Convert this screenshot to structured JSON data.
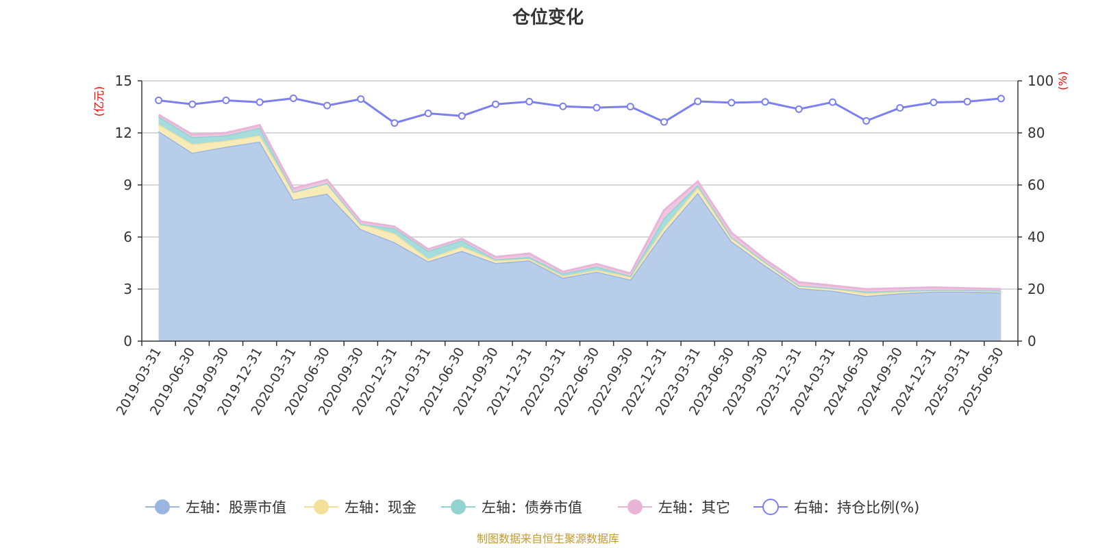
{
  "chart_data": {
    "type": "area",
    "title": "仓位变化",
    "left_axis": {
      "unit": "(亿元)",
      "ylim": [
        0,
        15
      ],
      "ticks": [
        0,
        3,
        6,
        9,
        12,
        15
      ]
    },
    "right_axis": {
      "unit": "(%)",
      "ylim": [
        0,
        100
      ],
      "ticks": [
        0,
        20,
        40,
        60,
        80,
        100
      ]
    },
    "categories": [
      "2019-03-31",
      "2019-06-30",
      "2019-09-30",
      "2019-12-31",
      "2020-03-31",
      "2020-06-30",
      "2020-09-30",
      "2020-12-31",
      "2021-03-31",
      "2021-06-30",
      "2021-09-30",
      "2021-12-31",
      "2022-03-31",
      "2022-06-30",
      "2022-09-30",
      "2022-12-31",
      "2023-03-31",
      "2023-06-30",
      "2023-09-30",
      "2023-12-31",
      "2024-03-31",
      "2024-06-30",
      "2024-09-30",
      "2024-12-31",
      "2025-03-31",
      "2025-06-30"
    ],
    "stacked_series": [
      {
        "name": "左轴：股票市值",
        "color": "#9ab6e0",
        "fill": "#b8cdea",
        "values": [
          12.1,
          10.85,
          11.2,
          11.5,
          8.15,
          8.5,
          6.45,
          5.7,
          4.6,
          5.2,
          4.5,
          4.65,
          3.65,
          4.0,
          3.55,
          6.3,
          8.55,
          5.75,
          4.35,
          3.05,
          2.9,
          2.6,
          2.75,
          2.85,
          2.85,
          2.8
        ]
      },
      {
        "name": "左轴：现金",
        "color": "#f5e09a",
        "fill": "#f9ebb8",
        "values": [
          0.4,
          0.5,
          0.35,
          0.35,
          0.45,
          0.6,
          0.3,
          0.5,
          0.15,
          0.25,
          0.15,
          0.1,
          0.1,
          0.1,
          0.15,
          0.25,
          0.3,
          0.2,
          0.2,
          0.15,
          0.15,
          0.15,
          0.1,
          0.1,
          0.1,
          0.1
        ]
      },
      {
        "name": "左轴：债券市值",
        "color": "#92d3d2",
        "fill": "#a6dcdb",
        "values": [
          0.45,
          0.4,
          0.3,
          0.45,
          0.0,
          0.0,
          0.0,
          0.3,
          0.45,
          0.35,
          0.05,
          0.1,
          0.15,
          0.2,
          0.05,
          0.55,
          0.15,
          0.05,
          0.0,
          0.0,
          0.0,
          0.1,
          0.05,
          0.0,
          0.0,
          0.0
        ]
      },
      {
        "name": "左轴：其它",
        "color": "#e8b5d8",
        "fill": "#eec6e1",
        "values": [
          0.1,
          0.15,
          0.15,
          0.15,
          0.2,
          0.2,
          0.15,
          0.1,
          0.1,
          0.1,
          0.15,
          0.2,
          0.1,
          0.15,
          0.15,
          0.45,
          0.2,
          0.25,
          0.15,
          0.2,
          0.15,
          0.15,
          0.15,
          0.15,
          0.1,
          0.1
        ]
      }
    ],
    "line_series": {
      "name": "右轴：持仓比例(%)",
      "color": "#7b7ff0",
      "values": [
        92.5,
        91.0,
        92.5,
        91.8,
        93.3,
        90.5,
        93.0,
        83.8,
        87.5,
        86.5,
        91.0,
        92.0,
        90.2,
        89.7,
        90.1,
        84.2,
        92.1,
        91.6,
        91.9,
        89.1,
        91.8,
        84.6,
        89.6,
        91.7,
        92.0,
        93.2
      ]
    },
    "legend_position": "bottom",
    "grid": true
  },
  "source_text": "制图数据来自恒生聚源数据库"
}
